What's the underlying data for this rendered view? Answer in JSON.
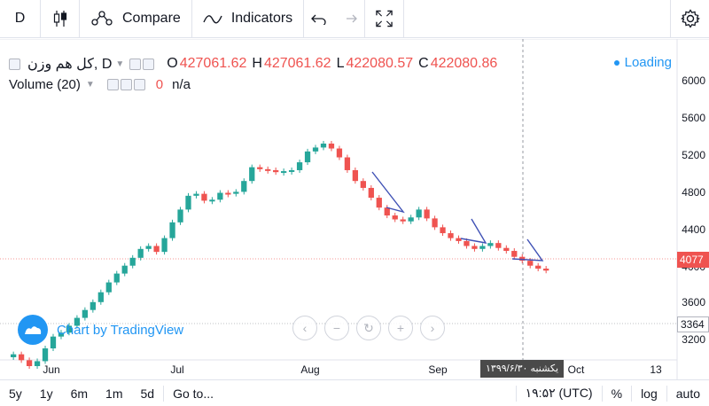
{
  "toolbar": {
    "interval": "D",
    "compare_label": "Compare",
    "indicators_label": "Indicators"
  },
  "legend": {
    "symbol": "کل هم وزن, D",
    "o_key": "O",
    "o_val": "427061.62",
    "h_key": "H",
    "h_val": "427061.62",
    "l_key": "L",
    "l_val": "422080.57",
    "c_key": "C",
    "c_val": "422080.86",
    "loading": "Loading",
    "volume_label": "Volume (20)",
    "volume_value": "0",
    "volume_na": "n/a"
  },
  "price_axis": {
    "ticks": [
      "6000",
      "5600",
      "5200",
      "4800",
      "4400",
      "4000",
      "3600",
      "3200"
    ],
    "last_price_tag": "4077",
    "marker_tag": "3364",
    "colors": {
      "up": "#26a69a",
      "down": "#ef5350"
    }
  },
  "time_axis": {
    "ticks": [
      "Jun",
      "Jul",
      "Aug",
      "Sep",
      "Oct",
      "13"
    ],
    "cursor_label": "یکشنبه ۱۳۹۹/۶/۳۰"
  },
  "watermark": "Chart by TradingView",
  "bottom_bar": {
    "ranges": [
      "5y",
      "1y",
      "6m",
      "1m",
      "5d"
    ],
    "goto": "Go to...",
    "time": "۱۹:۵۲ (UTC)",
    "percent": "%",
    "log": "log",
    "auto": "auto"
  },
  "chart_data": {
    "type": "candlestick",
    "x_range": [
      "May",
      "Oct"
    ],
    "y_range": [
      3100,
      6100
    ],
    "close_levels_approx": [
      3230,
      3170,
      3110,
      3160,
      3290,
      3410,
      3450,
      3520,
      3600,
      3680,
      3760,
      3860,
      3960,
      4050,
      4130,
      4210,
      4300,
      4330,
      4270,
      4410,
      4570,
      4700,
      4840,
      4860,
      4790,
      4800,
      4870,
      4860,
      4880,
      4990,
      5130,
      5110,
      5100,
      5080,
      5090,
      5100,
      5180,
      5290,
      5330,
      5370,
      5320,
      5230,
      5100,
      4990,
      4920,
      4820,
      4720,
      4640,
      4600,
      4580,
      4620,
      4700,
      4610,
      4520,
      4460,
      4410,
      4380,
      4330,
      4300,
      4330,
      4360,
      4310,
      4280,
      4220,
      4180,
      4130,
      4100,
      4080
    ]
  }
}
